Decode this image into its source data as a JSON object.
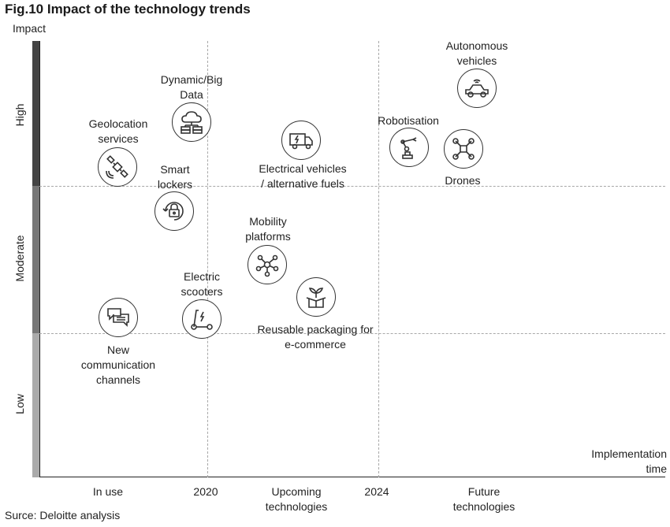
{
  "title": "Fig.10 Impact of the technology trends",
  "y_axis": {
    "title": "Impact",
    "levels": [
      "High",
      "Moderate",
      "Low"
    ],
    "colors": {
      "high": "#444444",
      "moderate": "#777777",
      "low": "#aaaaaa"
    }
  },
  "x_axis": {
    "title": "Implementation\ntime",
    "ticks": [
      "In use",
      "2020",
      "Upcoming\ntechnologies",
      "2024",
      "Future\ntechnologies"
    ]
  },
  "trends": {
    "geolocation": {
      "label": "Geolocation\nservices",
      "icon": "satellite-icon"
    },
    "bigdata": {
      "label": "Dynamic/Big\nData",
      "icon": "cloud-data-icon"
    },
    "lockers": {
      "label": "Smart\nlockers",
      "icon": "lock-icon"
    },
    "ev": {
      "label": "Electrical vehicles\n/ alternative fuels",
      "icon": "electric-truck-icon"
    },
    "mobility": {
      "label": "Mobility\nplatforms",
      "icon": "network-icon"
    },
    "scooters": {
      "label": "Electric\nscooters",
      "icon": "scooter-icon"
    },
    "packaging": {
      "label": "Reusable packaging for\ne-commerce",
      "icon": "box-plant-icon"
    },
    "communication": {
      "label": "New\ncommunication\nchannels",
      "icon": "chat-icon"
    },
    "robotisation": {
      "label": "Robotisation",
      "icon": "robot-arm-icon"
    },
    "autonomous": {
      "label": "Autonomous\nvehicles",
      "icon": "autonomous-car-icon"
    },
    "drones": {
      "label": "Drones",
      "icon": "drone-icon"
    }
  },
  "source": "Surce: Deloitte analysis"
}
